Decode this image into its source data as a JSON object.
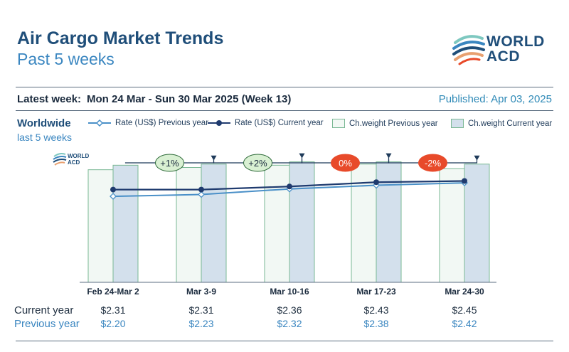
{
  "header": {
    "title": "Air Cargo Market Trends",
    "subtitle": "Past 5 weeks",
    "logo_line1": "WORLD",
    "logo_line2": "ACD"
  },
  "meta": {
    "latest_label": "Latest week:",
    "latest_value": "Mon 24 Mar - Sun 30 Mar 2025 (Week 13)",
    "published": "Published: Apr 03, 2025"
  },
  "region": {
    "name": "Worldwide",
    "period": "last 5 weeks"
  },
  "legend": {
    "rate_prev": "Rate (US$) Previous year",
    "rate_cur": "Rate (US$) Current year",
    "cw_prev": "Ch.weight Previous year",
    "cw_cur": "Ch.weight Current year"
  },
  "table": {
    "current_label": "Current year",
    "previous_label": "Previous year"
  },
  "colors": {
    "bar_prev_fill": "#f2f8f4",
    "bar_prev_stroke": "#7ab894",
    "bar_cur_fill": "#d3e0ec",
    "bar_cur_stroke": "#7ab894",
    "line_cur": "#1f3b6f",
    "line_prev": "#4a90c8",
    "badge_positive": "#d9f0d3",
    "badge_negative": "#e84a2a"
  },
  "chart_data": {
    "type": "bar",
    "categories": [
      "Feb 24-Mar 2",
      "Mar 3-9",
      "Mar 10-16",
      "Mar 17-23",
      "Mar 24-30"
    ],
    "series": [
      {
        "name": "Ch.weight Previous year",
        "type": "bar",
        "values": [
          100,
          102,
          104,
          105,
          101
        ]
      },
      {
        "name": "Ch.weight Current year",
        "type": "bar",
        "values": [
          104,
          105,
          107,
          107,
          105
        ]
      },
      {
        "name": "Rate (US$) Current year",
        "type": "line",
        "values": [
          2.31,
          2.31,
          2.36,
          2.43,
          2.45
        ],
        "labels": [
          "$2.31",
          "$2.31",
          "$2.36",
          "$2.43",
          "$2.45"
        ]
      },
      {
        "name": "Rate (US$) Previous year",
        "type": "line",
        "values": [
          2.2,
          2.23,
          2.32,
          2.38,
          2.42
        ],
        "labels": [
          "$2.20",
          "$2.23",
          "$2.32",
          "$2.38",
          "$2.42"
        ]
      }
    ],
    "weight_axis_range": [
      0,
      120
    ],
    "rate_axis_range": [
      0.8,
      3.0
    ],
    "week_on_week_changes": [
      "+1%",
      "+2%",
      "0%",
      "-2%"
    ],
    "change_signs": [
      "positive",
      "positive",
      "neutral",
      "negative"
    ],
    "grid": false
  }
}
